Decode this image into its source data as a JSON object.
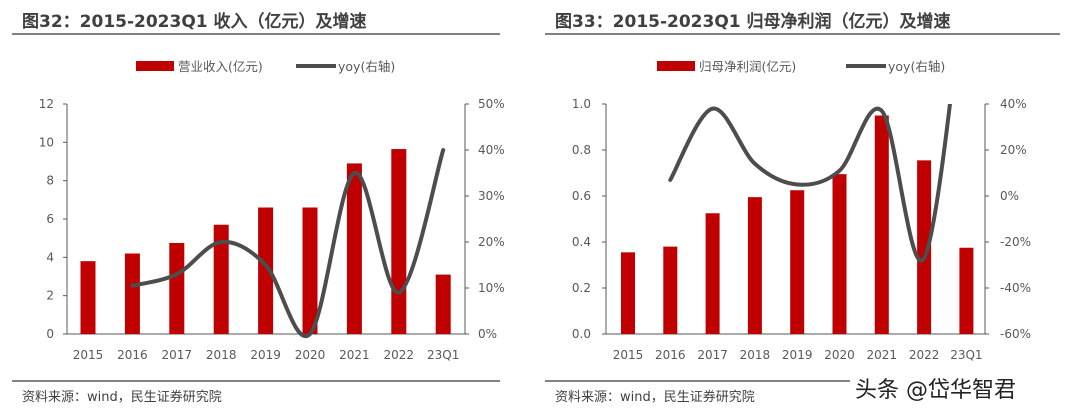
{
  "watermark": "头条 @岱华智君",
  "colors": {
    "bar": "#C00000",
    "line": "#4D4D4D",
    "text": "#595959",
    "rule": "#595959"
  },
  "chart_data": [
    {
      "type": "bar+line",
      "title": "图32：2015-2023Q1 收入（亿元）及增速",
      "source": "资料来源：wind，民生证券研究院",
      "categories": [
        "2015",
        "2016",
        "2017",
        "2018",
        "2019",
        "2020",
        "2021",
        "2022",
        "23Q1"
      ],
      "left_ticks": [
        "0",
        "2",
        "4",
        "6",
        "8",
        "10",
        "12"
      ],
      "right_ticks": [
        "0%",
        "10%",
        "20%",
        "30%",
        "40%",
        "50%"
      ],
      "ylim": [
        0,
        12
      ],
      "y2lim": [
        0,
        50
      ],
      "legend_position": "top",
      "series": [
        {
          "name": "营业收入(亿元)",
          "type": "bar",
          "axis": "left",
          "values": [
            3.8,
            4.2,
            4.75,
            5.7,
            6.6,
            6.6,
            8.9,
            9.65,
            3.1
          ]
        },
        {
          "name": "yoy(右轴)",
          "type": "line",
          "axis": "right",
          "values": [
            null,
            10.5,
            13,
            20,
            15,
            0,
            35,
            9,
            40
          ]
        }
      ]
    },
    {
      "type": "bar+line",
      "title": "图33：2015-2023Q1 归母净利润（亿元）及增速",
      "source": "资料来源：wind，民生证券研究院",
      "categories": [
        "2015",
        "2016",
        "2017",
        "2018",
        "2019",
        "2020",
        "2021",
        "2022",
        "23Q1"
      ],
      "left_ticks": [
        "0.0",
        "0.2",
        "0.4",
        "0.6",
        "0.8",
        "1.0"
      ],
      "right_ticks": [
        "-60%",
        "-40%",
        "-20%",
        "0%",
        "20%",
        "40%"
      ],
      "ylim": [
        0,
        1.0
      ],
      "y2lim": [
        -60,
        40
      ],
      "legend_position": "top",
      "series": [
        {
          "name": "归母净利润(亿元)",
          "type": "bar",
          "axis": "left",
          "values": [
            0.355,
            0.38,
            0.525,
            0.595,
            0.625,
            0.695,
            0.95,
            0.755,
            0.375
          ]
        },
        {
          "name": "yoy(右轴)",
          "type": "line",
          "axis": "right",
          "values": [
            null,
            7,
            38,
            14,
            5,
            11,
            37,
            -27,
            100
          ]
        }
      ]
    }
  ]
}
